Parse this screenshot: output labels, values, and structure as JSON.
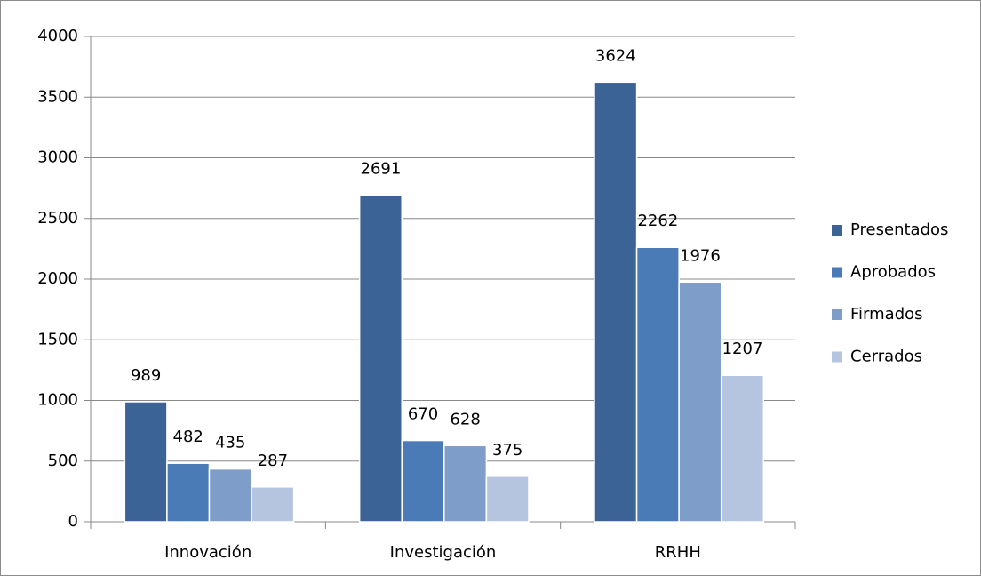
{
  "chart_data": {
    "type": "bar",
    "categories": [
      "Innovación",
      "Investigación",
      "RRHH"
    ],
    "series": [
      {
        "name": "Presentados",
        "color": "#3b6395",
        "values": [
          989,
          2691,
          3624
        ]
      },
      {
        "name": "Aprobados",
        "color": "#4a7bb6",
        "values": [
          482,
          670,
          2262
        ]
      },
      {
        "name": "Firmados",
        "color": "#7f9dc9",
        "values": [
          435,
          628,
          1976
        ]
      },
      {
        "name": "Cerrados",
        "color": "#b5c5e0",
        "values": [
          287,
          375,
          1207
        ]
      }
    ],
    "ylim": [
      0,
      4000
    ],
    "yticks": [
      0,
      500,
      1000,
      1500,
      2000,
      2500,
      3000,
      3500,
      4000
    ],
    "grid": true,
    "legend": "right"
  }
}
